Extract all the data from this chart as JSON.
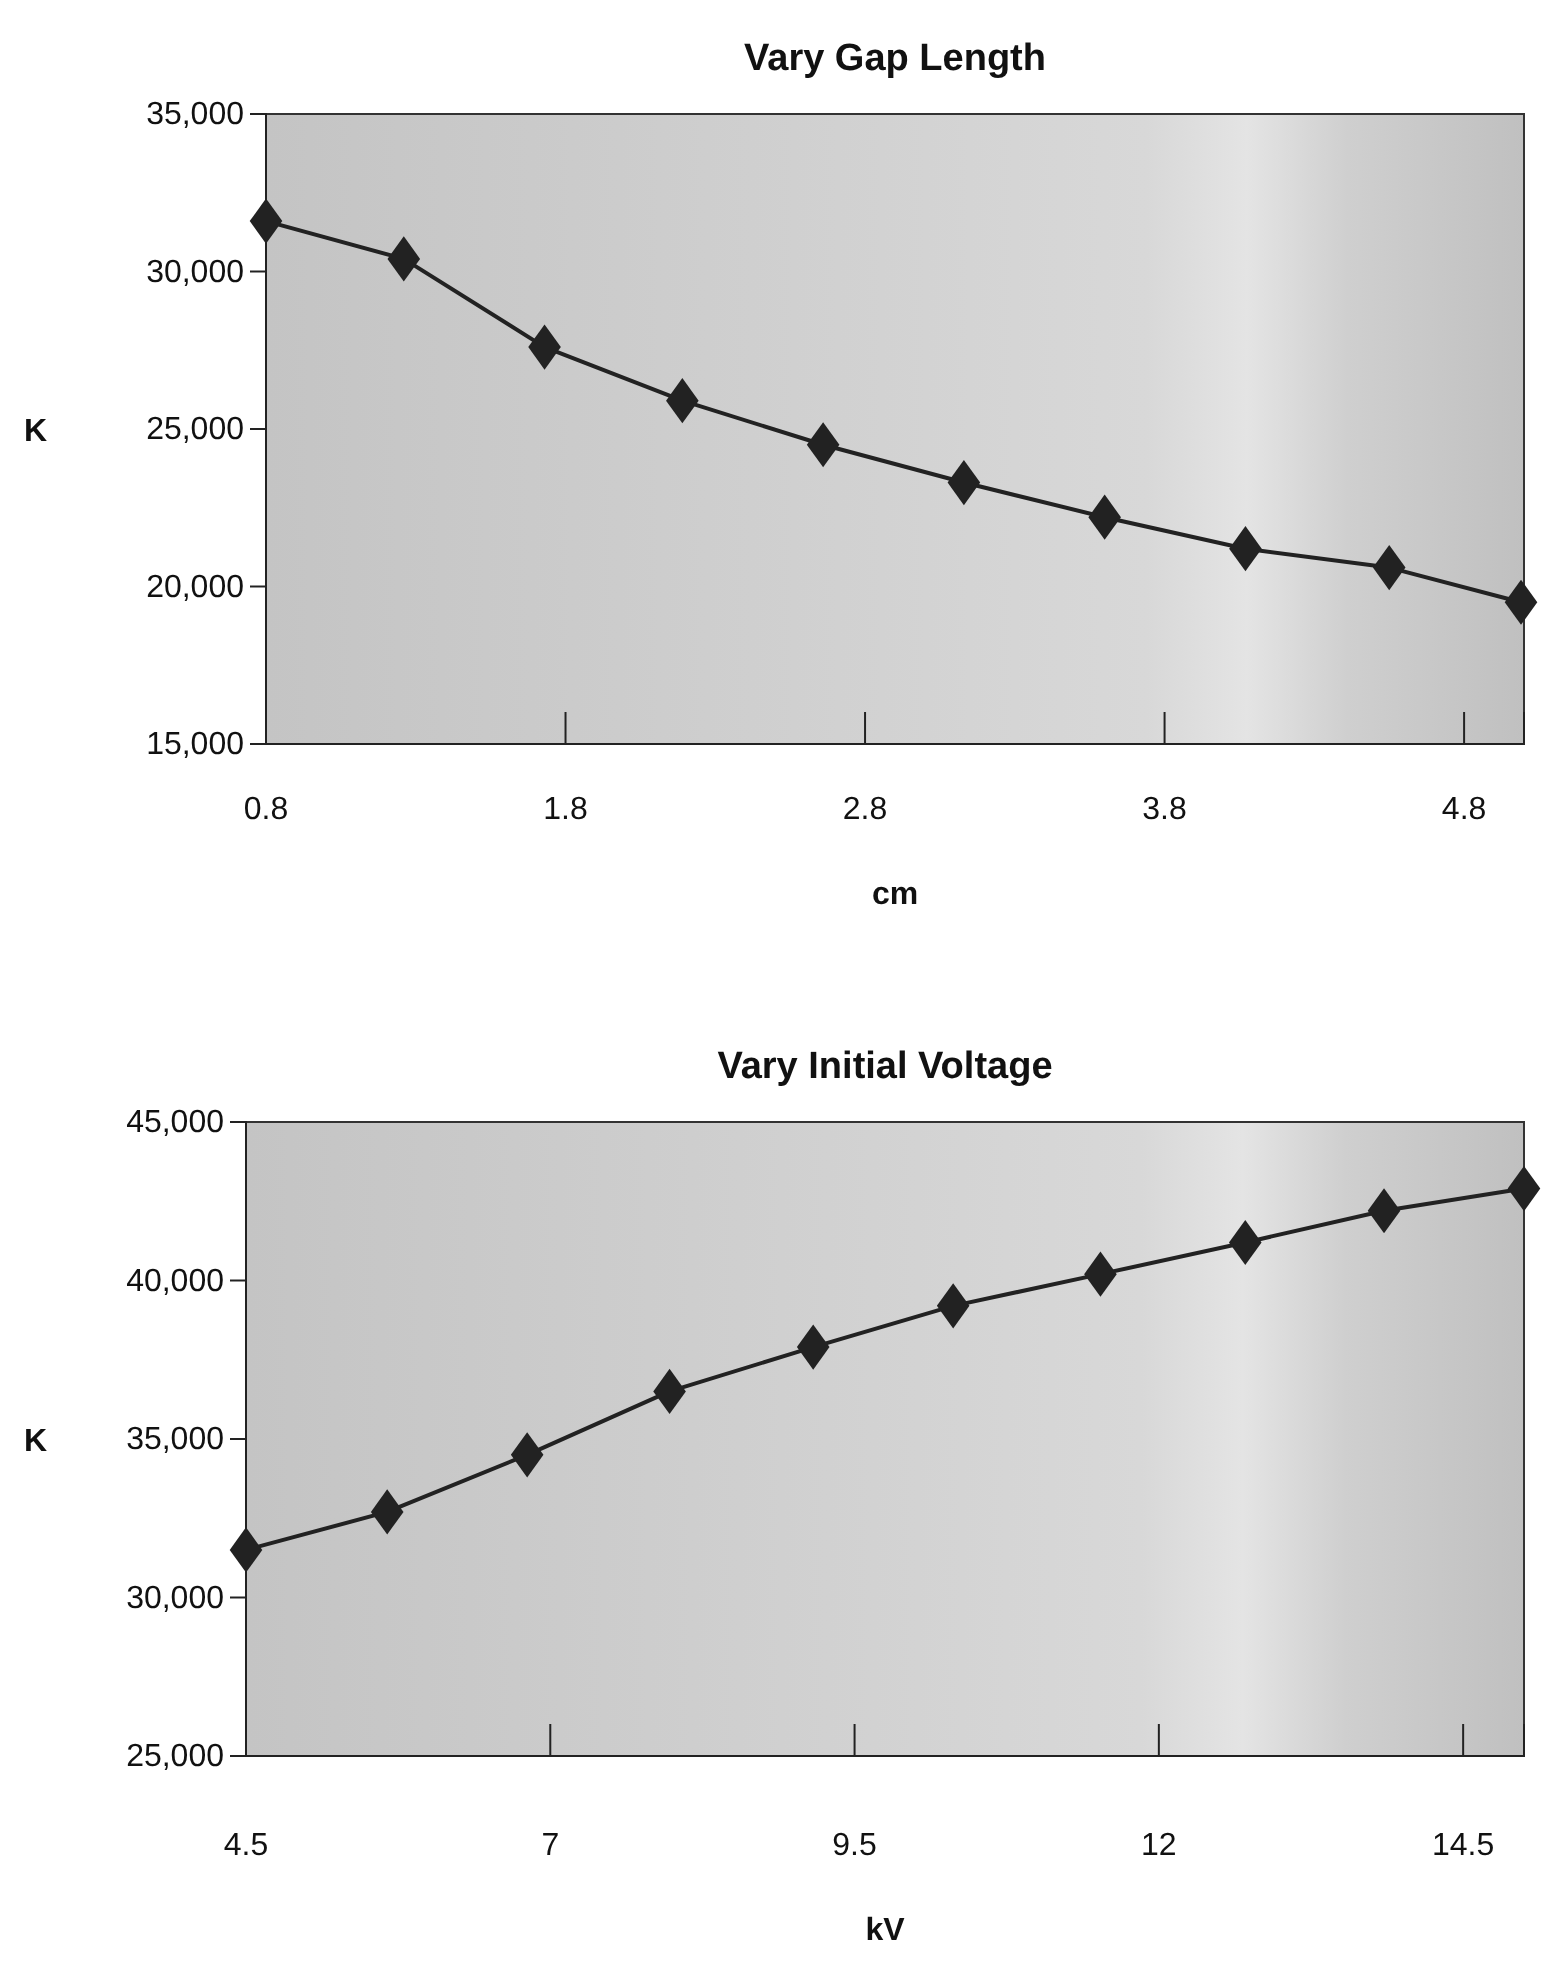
{
  "chart_data": [
    {
      "type": "line",
      "title": "Vary Gap Length",
      "xlabel": "cm",
      "ylabel": "K",
      "marker": "diamond",
      "grid": false,
      "x": [
        0.8,
        1.26,
        1.73,
        2.19,
        2.66,
        3.13,
        3.6,
        4.07,
        4.55,
        4.99
      ],
      "series": [
        {
          "color": "#222222",
          "values": [
            31600,
            30400,
            27600,
            25900,
            24500,
            23300,
            22200,
            21200,
            20600,
            19500
          ]
        }
      ],
      "xlim": [
        0.8,
        5.0
      ],
      "xticks": [
        0.8,
        1.8,
        2.8,
        3.8,
        4.8
      ],
      "ylim": [
        15000,
        35000
      ],
      "yticks": [
        {
          "value": 15000,
          "label": "15,000"
        },
        {
          "value": 20000,
          "label": "20,000"
        },
        {
          "value": 25000,
          "label": "25,000"
        },
        {
          "value": 30000,
          "label": "30,000"
        },
        {
          "value": 35000,
          "label": "35,000"
        }
      ]
    },
    {
      "type": "line",
      "title": "Vary Initial Voltage",
      "xlabel": "kV",
      "ylabel": "K",
      "marker": "diamond",
      "grid": false,
      "x": [
        4.5,
        5.66,
        6.81,
        7.98,
        9.16,
        10.31,
        11.52,
        12.71,
        13.85,
        15.0
      ],
      "series": [
        {
          "color": "#222222",
          "values": [
            31500,
            32700,
            34500,
            36500,
            37900,
            39200,
            40200,
            41200,
            42200,
            42900
          ]
        }
      ],
      "xlim": [
        4.5,
        15.0
      ],
      "xticks": [
        4.5,
        7,
        9.5,
        12,
        14.5
      ],
      "ylim": [
        25000,
        45000
      ],
      "yticks": [
        {
          "value": 25000,
          "label": "25,000"
        },
        {
          "value": 30000,
          "label": "30,000"
        },
        {
          "value": 35000,
          "label": "35,000"
        },
        {
          "value": 40000,
          "label": "40,000"
        },
        {
          "value": 45000,
          "label": "45,000"
        }
      ]
    }
  ]
}
